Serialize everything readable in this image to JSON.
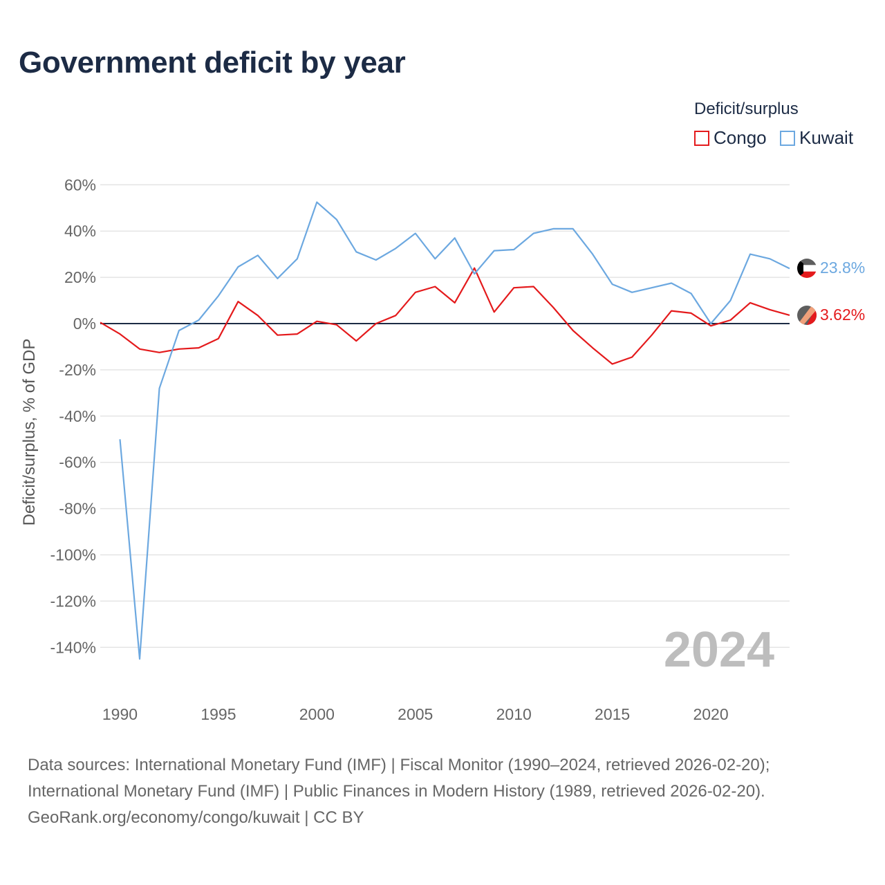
{
  "chart_data": {
    "type": "line",
    "title": "Government deficit by year",
    "ylabel": "Deficit/surplus, % of GDP",
    "xlabel": "",
    "ylim": [
      -150,
      60
    ],
    "xlim": [
      1989,
      2024
    ],
    "y_ticks": [
      60,
      40,
      20,
      0,
      -20,
      -40,
      -60,
      -80,
      -100,
      -120,
      -140
    ],
    "y_tick_labels": [
      "60%",
      "40%",
      "20%",
      "0%",
      "-20%",
      "-40%",
      "-60%",
      "-80%",
      "-100%",
      "-120%",
      "-140%"
    ],
    "x_ticks": [
      1990,
      1995,
      2000,
      2005,
      2010,
      2015,
      2020
    ],
    "x_tick_labels": [
      "1990",
      "1995",
      "2000",
      "2005",
      "2010",
      "2015",
      "2020"
    ],
    "legend_title": "Deficit/surplus",
    "legend_position": "top-right",
    "year_watermark": "2024",
    "series": [
      {
        "name": "Congo",
        "color": "#e41a1c",
        "end_label": "3.62%",
        "points": [
          [
            1989,
            0.5
          ],
          [
            1990,
            -4.5
          ],
          [
            1991,
            -11
          ],
          [
            1992,
            -12.5
          ],
          [
            1993,
            -11
          ],
          [
            1994,
            -10.5
          ],
          [
            1995,
            -6.5
          ],
          [
            1996,
            9.5
          ],
          [
            1997,
            3.5
          ],
          [
            1998,
            -5
          ],
          [
            1999,
            -4.5
          ],
          [
            2000,
            1
          ],
          [
            2001,
            -0.5
          ],
          [
            2002,
            -7.5
          ],
          [
            2003,
            0
          ],
          [
            2004,
            3.5
          ],
          [
            2005,
            13.5
          ],
          [
            2006,
            16
          ],
          [
            2007,
            9
          ],
          [
            2008,
            24
          ],
          [
            2009,
            5
          ],
          [
            2010,
            15.5
          ],
          [
            2011,
            16
          ],
          [
            2012,
            7
          ],
          [
            2013,
            -3
          ],
          [
            2014,
            -10.5
          ],
          [
            2015,
            -17.5
          ],
          [
            2016,
            -14.5
          ],
          [
            2017,
            -5
          ],
          [
            2018,
            5.5
          ],
          [
            2019,
            4.5
          ],
          [
            2020,
            -1
          ],
          [
            2021,
            1.5
          ],
          [
            2022,
            9
          ],
          [
            2023,
            6
          ],
          [
            2024,
            3.62
          ]
        ]
      },
      {
        "name": "Kuwait",
        "color": "#6ca8e0",
        "end_label": "23.8%",
        "points": [
          [
            1990,
            -50
          ],
          [
            1991,
            -145
          ],
          [
            1992,
            -28
          ],
          [
            1993,
            -3
          ],
          [
            1994,
            1.5
          ],
          [
            1995,
            12
          ],
          [
            1996,
            24.5
          ],
          [
            1997,
            29.5
          ],
          [
            1998,
            19.5
          ],
          [
            1999,
            28
          ],
          [
            2000,
            52.5
          ],
          [
            2001,
            45
          ],
          [
            2002,
            31
          ],
          [
            2003,
            27.5
          ],
          [
            2004,
            32.5
          ],
          [
            2005,
            39
          ],
          [
            2006,
            28
          ],
          [
            2007,
            37
          ],
          [
            2008,
            21.5
          ],
          [
            2009,
            31.5
          ],
          [
            2010,
            32
          ],
          [
            2011,
            39
          ],
          [
            2012,
            41
          ],
          [
            2013,
            41
          ],
          [
            2014,
            30
          ],
          [
            2015,
            17
          ],
          [
            2016,
            13.5
          ],
          [
            2017,
            15.5
          ],
          [
            2018,
            17.5
          ],
          [
            2019,
            13
          ],
          [
            2020,
            0
          ],
          [
            2021,
            10
          ],
          [
            2022,
            30
          ],
          [
            2023,
            28
          ],
          [
            2024,
            23.8
          ]
        ]
      }
    ]
  },
  "sources": {
    "line1": "Data sources: International Monetary Fund (IMF) | Fiscal Monitor (1990–2024, retrieved 2026-02-20);",
    "line2": "International Monetary Fund (IMF) | Public Finances in Modern History (1989, retrieved 2026-02-20).",
    "line3": "GeoRank.org/economy/congo/kuwait | CC BY"
  }
}
